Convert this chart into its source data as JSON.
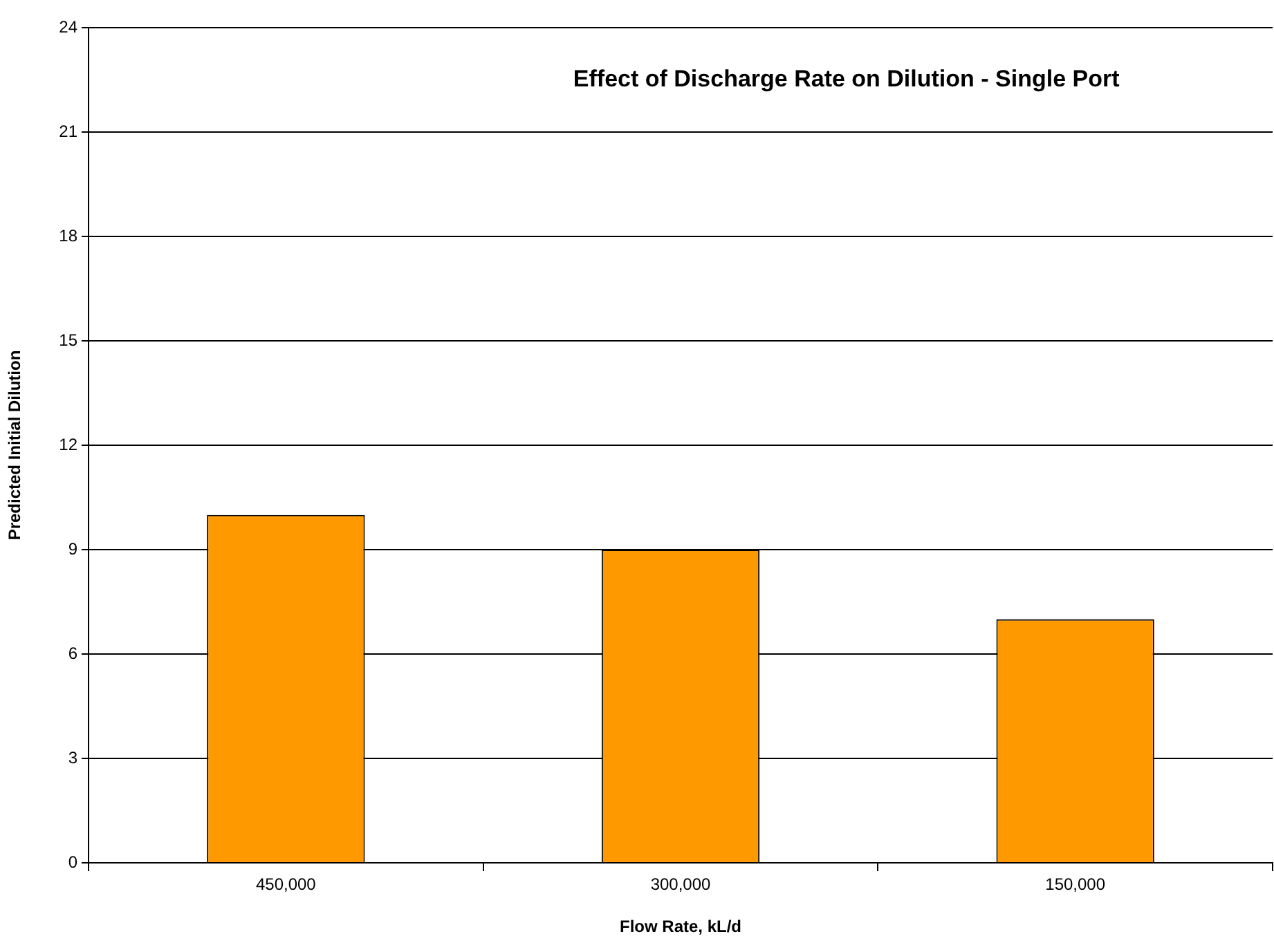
{
  "chart_data": {
    "type": "bar",
    "title": "Effect of Discharge Rate on Dilution - Single Port",
    "xlabel": "Flow Rate, kL/d",
    "ylabel": "Predicted Initial Dilution",
    "categories": [
      "450,000",
      "300,000",
      "150,000"
    ],
    "values": [
      10,
      9,
      7
    ],
    "color": "#ff9900",
    "ylim": [
      0,
      24
    ],
    "yticks": [
      0,
      3,
      6,
      9,
      12,
      15,
      18,
      21,
      24
    ],
    "grid": "y",
    "legend": false
  }
}
